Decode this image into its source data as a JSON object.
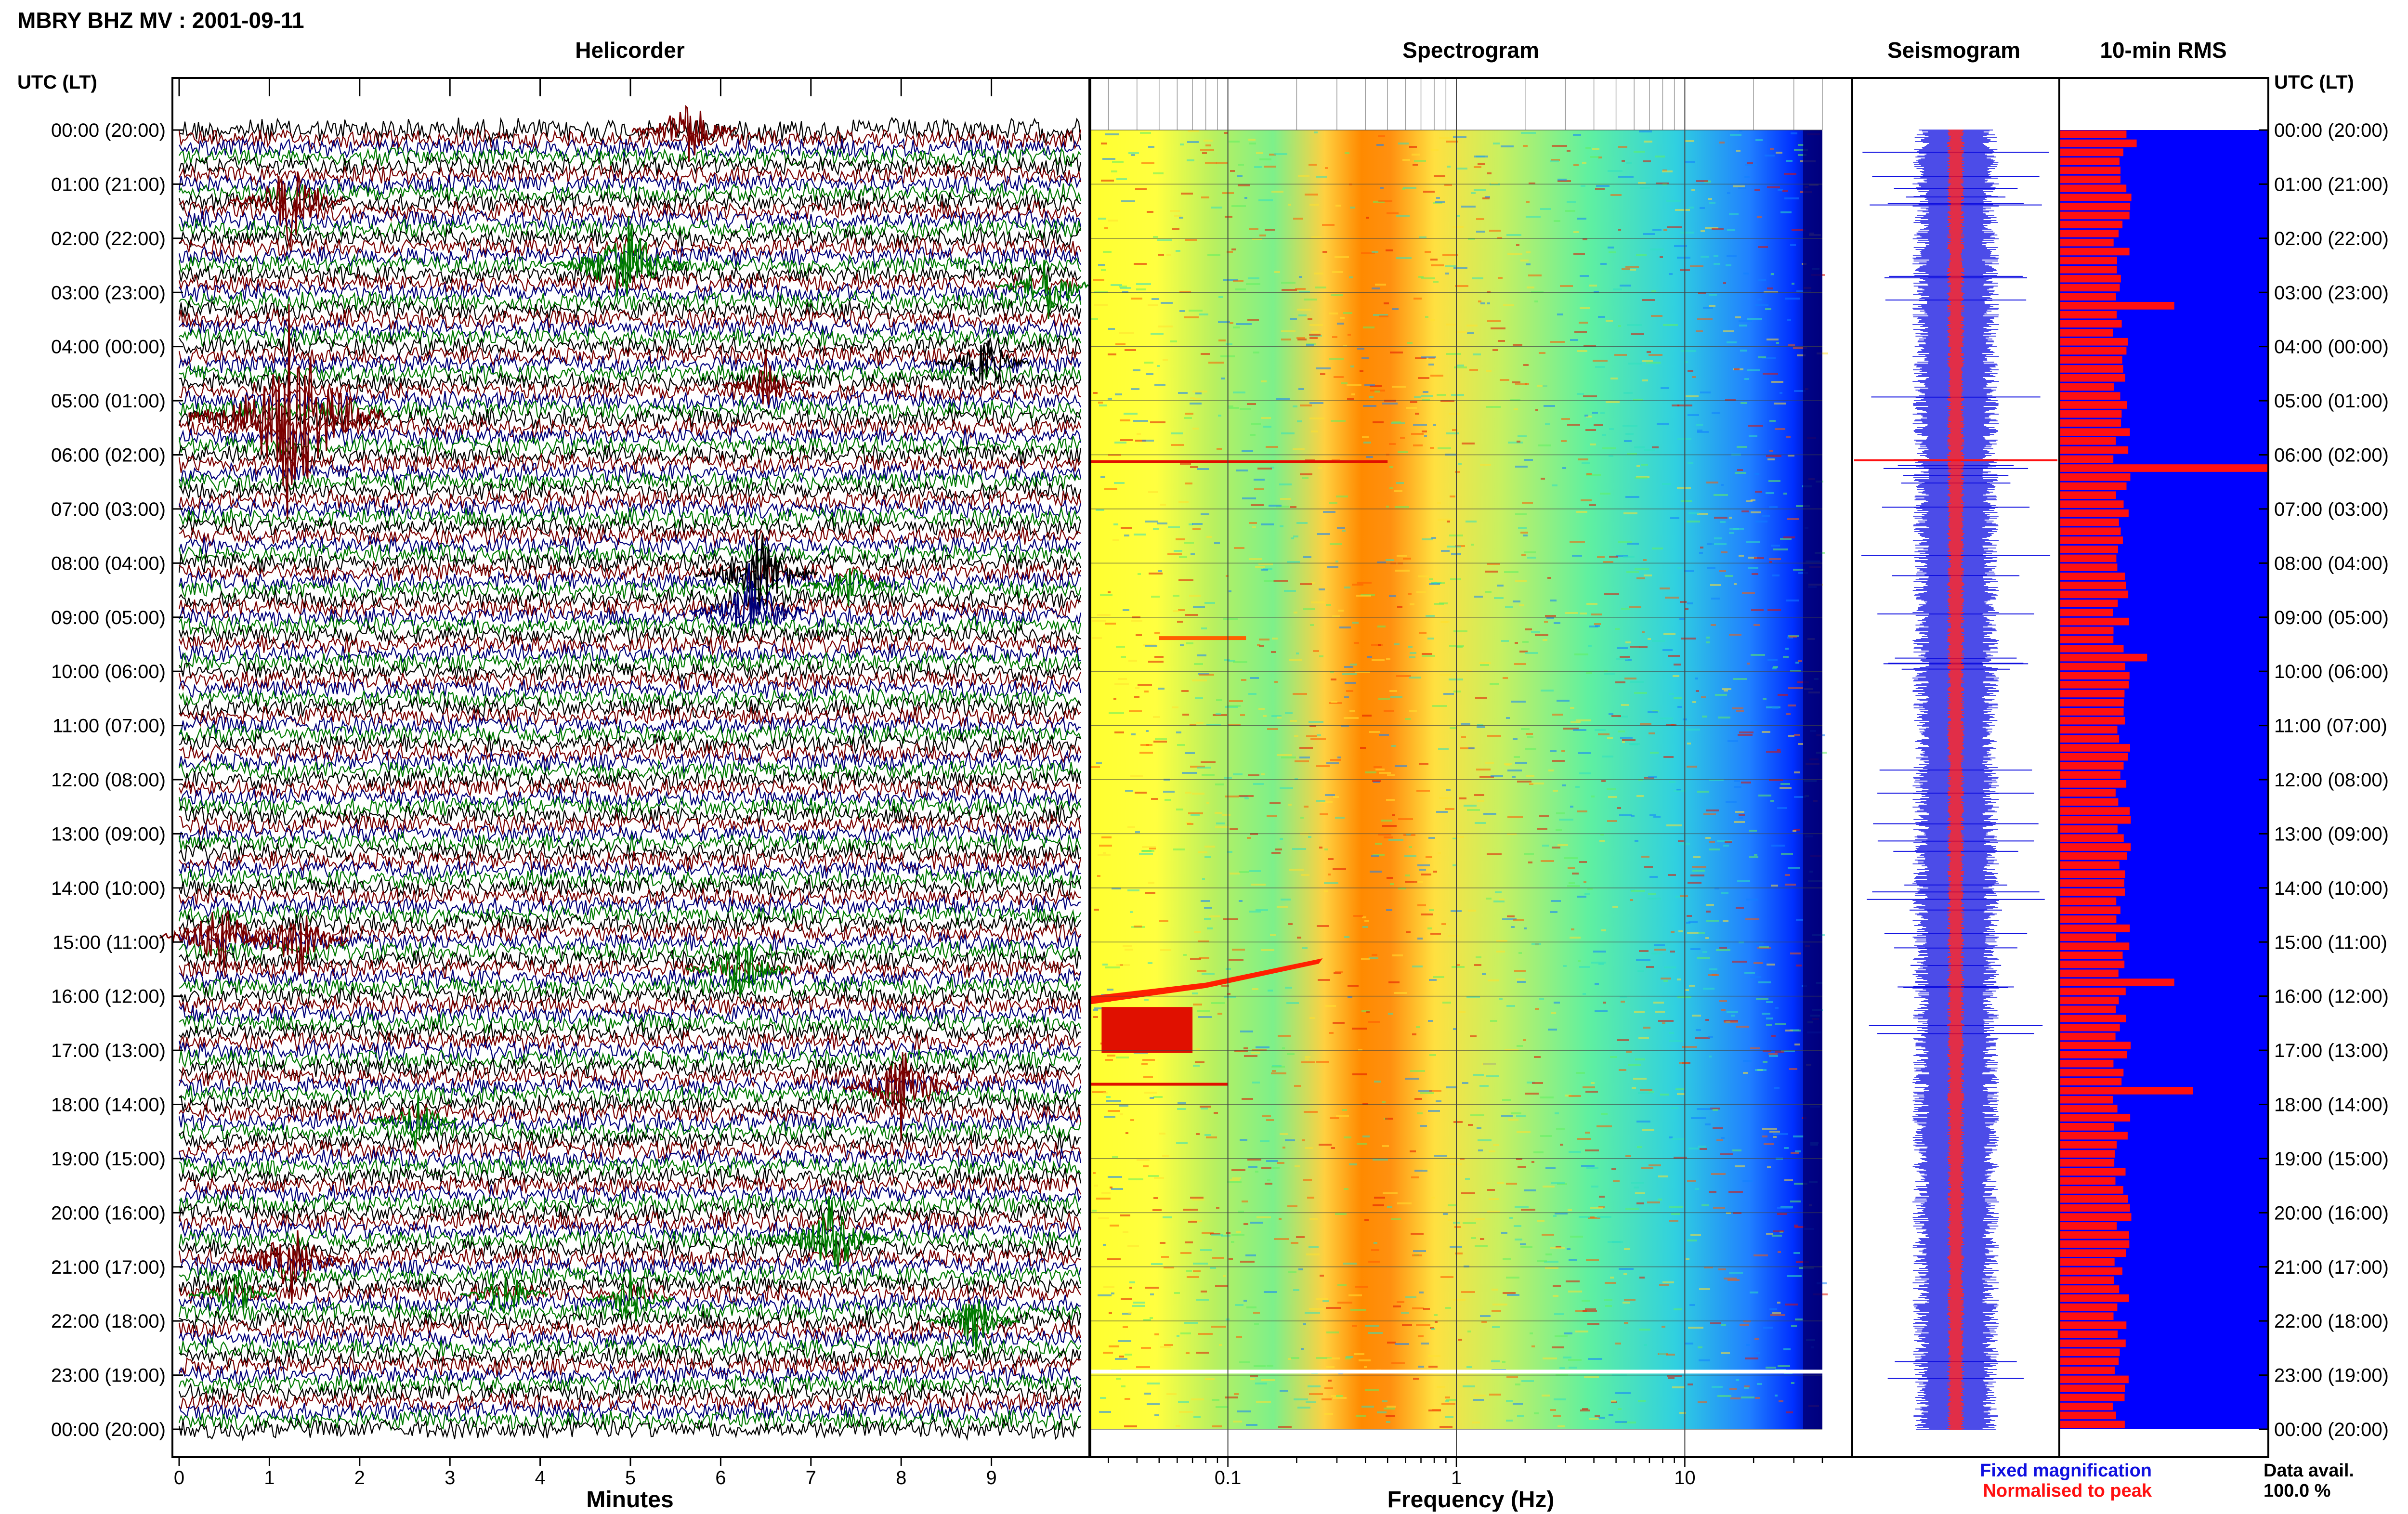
{
  "header": {
    "title": "MBRY BHZ MV : 2001-09-11"
  },
  "panels": {
    "helicorder": "Helicorder",
    "spectrogram": "Spectrogram",
    "seismogram": "Seismogram",
    "rms": "10-min RMS"
  },
  "axes": {
    "left_header": "UTC (LT)",
    "right_header": "UTC (LT)",
    "helicorder_xlabel": "Minutes",
    "spectrogram_xlabel": "Frequency (Hz)"
  },
  "legend": {
    "fixed": "Fixed magnification",
    "normalised": "Normalised to peak",
    "fixed_color": "#1010e0",
    "normalised_color": "#ff1010"
  },
  "availability": {
    "label": "Data avail.",
    "value": "100.0 %"
  },
  "colors": {
    "trace_cycle": [
      "#000000",
      "#7a0000",
      "#00007a",
      "#007a00"
    ],
    "spectrogram_scale": [
      "#ffff30",
      "#ff8a00",
      "#e01000",
      "#30ff90",
      "#20c0ff",
      "#0040ff",
      "#00007a"
    ],
    "seismogram_fixed": "#1010e0",
    "seismogram_normalised": "#ff1010",
    "rms_bar": "#ff1010",
    "rms_background": "#0000ff"
  },
  "chart_data": [
    {
      "type": "line",
      "title": "Helicorder",
      "xlabel": "Minutes",
      "ylabel": "UTC (LT)",
      "xlim": [
        0,
        10
      ],
      "x_ticks": [
        "0",
        "1",
        "2",
        "3",
        "4",
        "5",
        "6",
        "7",
        "8",
        "9"
      ],
      "y_ticks": [
        "00:00 (20:00)",
        "01:00 (21:00)",
        "02:00 (22:00)",
        "03:00 (23:00)",
        "04:00 (00:00)",
        "05:00 (01:00)",
        "06:00 (02:00)",
        "07:00 (03:00)",
        "08:00 (04:00)",
        "09:00 (05:00)",
        "10:00 (06:00)",
        "11:00 (07:00)",
        "12:00 (08:00)",
        "13:00 (09:00)",
        "14:00 (10:00)",
        "15:00 (11:00)",
        "16:00 (12:00)",
        "17:00 (13:00)",
        "18:00 (14:00)",
        "19:00 (15:00)",
        "20:00 (16:00)",
        "21:00 (17:00)",
        "22:00 (18:00)",
        "23:00 (19:00)",
        "00:00 (20:00)"
      ],
      "rows_per_hour": 6,
      "events": [
        {
          "hour": 0.0,
          "minute": 5.6,
          "strength": 0.8,
          "color": "#7a0000"
        },
        {
          "hour": 1.3,
          "minute": 1.2,
          "strength": 1.0,
          "color": "#7a0000"
        },
        {
          "hour": 2.5,
          "minute": 4.9,
          "strength": 1.3,
          "color": "#007a00"
        },
        {
          "hour": 2.9,
          "minute": 9.6,
          "strength": 0.7,
          "color": "#007a00"
        },
        {
          "hour": 4.3,
          "minute": 8.9,
          "strength": 0.6,
          "color": "#000000"
        },
        {
          "hour": 4.7,
          "minute": 6.5,
          "strength": 0.5,
          "color": "#7a0000"
        },
        {
          "hour": 5.3,
          "minute": 1.2,
          "strength": 2.4,
          "color": "#7a0000"
        },
        {
          "hour": 8.2,
          "minute": 6.4,
          "strength": 1.1,
          "color": "#000000"
        },
        {
          "hour": 8.4,
          "minute": 7.4,
          "strength": 0.5,
          "color": "#007a00"
        },
        {
          "hour": 8.9,
          "minute": 6.3,
          "strength": 1.0,
          "color": "#00007a"
        },
        {
          "hour": 14.9,
          "minute": 0.4,
          "strength": 0.9,
          "color": "#7a0000"
        },
        {
          "hour": 15.0,
          "minute": 1.3,
          "strength": 0.8,
          "color": "#7a0000"
        },
        {
          "hour": 15.5,
          "minute": 6.2,
          "strength": 0.8,
          "color": "#007a00"
        },
        {
          "hour": 17.7,
          "minute": 8.0,
          "strength": 1.0,
          "color": "#7a0000"
        },
        {
          "hour": 18.3,
          "minute": 2.6,
          "strength": 0.5,
          "color": "#007a00"
        },
        {
          "hour": 20.5,
          "minute": 7.2,
          "strength": 1.0,
          "color": "#007a00"
        },
        {
          "hour": 20.9,
          "minute": 1.2,
          "strength": 1.0,
          "color": "#7a0000"
        },
        {
          "hour": 21.5,
          "minute": 0.6,
          "strength": 0.5,
          "color": "#007a00"
        },
        {
          "hour": 21.5,
          "minute": 3.6,
          "strength": 0.5,
          "color": "#007a00"
        },
        {
          "hour": 21.6,
          "minute": 5.0,
          "strength": 0.5,
          "color": "#007a00"
        },
        {
          "hour": 22.0,
          "minute": 8.8,
          "strength": 0.6,
          "color": "#007a00"
        }
      ]
    },
    {
      "type": "heatmap",
      "title": "Spectrogram",
      "xlabel": "Frequency (Hz)",
      "x_scale": "log",
      "x_ticks": [
        "0.1",
        "1",
        "10"
      ],
      "xlim": [
        0.025,
        40
      ],
      "ylim_hours": [
        0,
        24
      ],
      "peak_band_hz": [
        0.2,
        0.45
      ],
      "notes": "high energy near 0.3 Hz at all times; low-frequency signals near 16:00-17:00 UTC"
    },
    {
      "type": "line",
      "title": "Seismogram",
      "series": [
        {
          "name": "Fixed magnification",
          "color": "#1010e0"
        },
        {
          "name": "Normalised to peak",
          "color": "#ff1010"
        }
      ],
      "ylim_hours": [
        0,
        24
      ]
    },
    {
      "type": "bar",
      "title": "10-min RMS",
      "orientation": "horizontal",
      "bins_per_hour": 6,
      "ylim_hours": [
        0,
        24
      ],
      "typical_relative_value": 0.3,
      "peaks": [
        {
          "hour": 0.2,
          "relative_value": 0.37
        },
        {
          "hour": 3.2,
          "relative_value": 0.55
        },
        {
          "hour": 6.2,
          "relative_value": 1.0
        },
        {
          "hour": 9.6,
          "relative_value": 0.42
        },
        {
          "hour": 15.6,
          "relative_value": 0.55
        },
        {
          "hour": 17.6,
          "relative_value": 0.64
        }
      ]
    }
  ]
}
